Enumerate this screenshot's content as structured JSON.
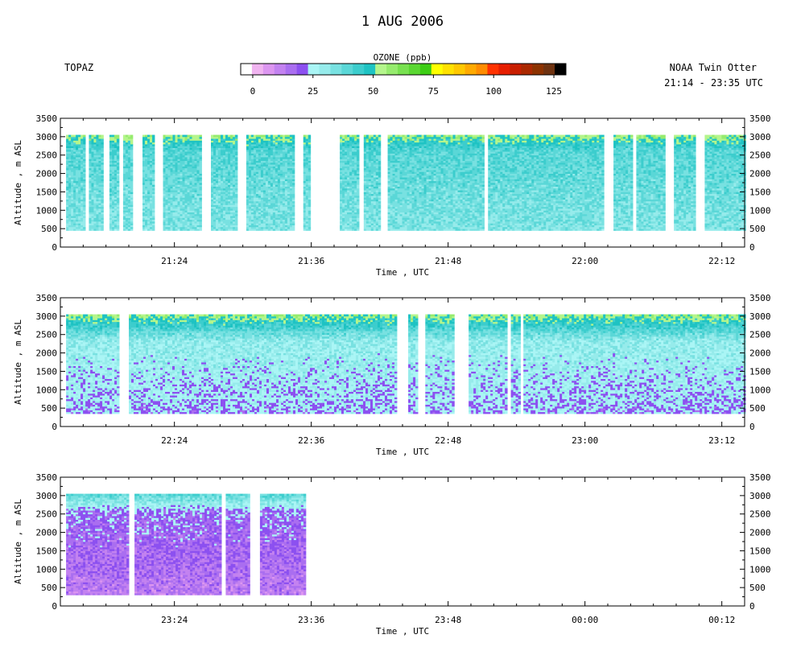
{
  "title": "1 AUG 2006",
  "left_label": "TOPAZ",
  "right_label_1": "NOAA Twin Otter",
  "right_label_2": "21:14 - 23:35 UTC",
  "colorbar": {
    "label": "OZONE (ppb)",
    "ticks": [
      "0",
      "25",
      "50",
      "75",
      "100",
      "125"
    ],
    "tick_values": [
      0,
      25,
      50,
      75,
      100,
      125
    ],
    "range": [
      -5,
      130
    ],
    "colors": [
      "#ffffff",
      "#f0b4f0",
      "#dc96f0",
      "#c382f0",
      "#aa6ef0",
      "#8c50f0",
      "#aaf5f5",
      "#96ebeb",
      "#78e1e1",
      "#5ad7d7",
      "#3ccdcd",
      "#1ec3c3",
      "#b4f58c",
      "#96eb6e",
      "#78e150",
      "#5ad732",
      "#3ccd14",
      "#ffff00",
      "#ffe100",
      "#ffc800",
      "#ffaa00",
      "#ff8c00",
      "#ff3200",
      "#e61e00",
      "#c81e00",
      "#aa2800",
      "#8c3200",
      "#6e3210",
      "#000000"
    ]
  },
  "chart_data": [
    {
      "type": "heatmap",
      "panel": 1,
      "xlabel": "Time , UTC",
      "ylabel": "Altitude , m ASL",
      "ylim": [
        0,
        3500
      ],
      "yticks": [
        "0",
        "500",
        "1000",
        "1500",
        "2000",
        "2500",
        "3000",
        "3500"
      ],
      "ytick_values": [
        0,
        500,
        1000,
        1500,
        2000,
        2500,
        3000,
        3500
      ],
      "xlim": [
        "21:14",
        "22:14"
      ],
      "xticks": [
        "21:24",
        "21:36",
        "21:48",
        "22:00",
        "22:12"
      ],
      "xtick_values": [
        10,
        22,
        34,
        46,
        58
      ],
      "ozone_summary": {
        "upper_layer_altitude_m": [
          2600,
          3050
        ],
        "upper_layer_ozone_ppb": 55,
        "lower_layer_ozone_ppb": 40,
        "data_altitude_m": [
          450,
          3050
        ]
      },
      "data_segments_min": [
        [
          0.5,
          2.0
        ],
        [
          2.5,
          3.7
        ],
        [
          4.3,
          5.0
        ],
        [
          5.5,
          6.3
        ],
        [
          7.2,
          8.1
        ],
        [
          9.0,
          12.3
        ],
        [
          13.2,
          15.5
        ],
        [
          16.3,
          20.5
        ],
        [
          21.3,
          21.9
        ],
        [
          24.5,
          26.0
        ],
        [
          26.6,
          28.0
        ],
        [
          28.7,
          37.0
        ],
        [
          37.5,
          47.5
        ],
        [
          48.5,
          50.0
        ],
        [
          50.5,
          53.0
        ],
        [
          53.8,
          55.5
        ],
        [
          56.5,
          60.0
        ]
      ]
    },
    {
      "type": "heatmap",
      "panel": 2,
      "xlabel": "Time , UTC",
      "ylabel": "Altitude , m ASL",
      "ylim": [
        0,
        3500
      ],
      "yticks": [
        "0",
        "500",
        "1000",
        "1500",
        "2000",
        "2500",
        "3000",
        "3500"
      ],
      "ytick_values": [
        0,
        500,
        1000,
        1500,
        2000,
        2500,
        3000,
        3500
      ],
      "xlim": [
        "22:14",
        "23:14"
      ],
      "xticks": [
        "22:24",
        "22:36",
        "22:48",
        "23:00",
        "23:12"
      ],
      "xtick_values": [
        10,
        22,
        34,
        46,
        58
      ],
      "ozone_summary": {
        "upper_layer_altitude_m": [
          2300,
          3050
        ],
        "upper_layer_ozone_ppb": 55,
        "lower_layer_ozone_ppb": 30,
        "data_altitude_m": [
          350,
          3050
        ]
      },
      "data_segments_min": [
        [
          0.5,
          5.0
        ],
        [
          6.0,
          29.5
        ],
        [
          30.5,
          31.3
        ],
        [
          32.0,
          34.5
        ],
        [
          35.8,
          39.0
        ],
        [
          39.5,
          40.3
        ],
        [
          40.6,
          60.0
        ]
      ]
    },
    {
      "type": "heatmap",
      "panel": 3,
      "xlabel": "Time , UTC",
      "ylabel": "Altitude , m ASL",
      "ylim": [
        0,
        3500
      ],
      "yticks": [
        "0",
        "500",
        "1000",
        "1500",
        "2000",
        "2500",
        "3000",
        "3500"
      ],
      "ytick_values": [
        0,
        500,
        1000,
        1500,
        2000,
        2500,
        3000,
        3500
      ],
      "xlim": [
        "23:14",
        "00:14"
      ],
      "xticks": [
        "23:24",
        "23:36",
        "23:48",
        "00:00",
        "00:12"
      ],
      "xtick_values": [
        10,
        22,
        34,
        46,
        58
      ],
      "ozone_summary": {
        "upper_layer_altitude_m": [
          2500,
          3050
        ],
        "upper_layer_ozone_ppb": 40,
        "lower_layer_ozone_ppb": 20,
        "data_altitude_m": [
          300,
          3050
        ]
      },
      "data_segments_min": [
        [
          0.5,
          6.0
        ],
        [
          6.5,
          14.0
        ],
        [
          14.5,
          16.5
        ],
        [
          17.5,
          21.5
        ]
      ]
    }
  ]
}
